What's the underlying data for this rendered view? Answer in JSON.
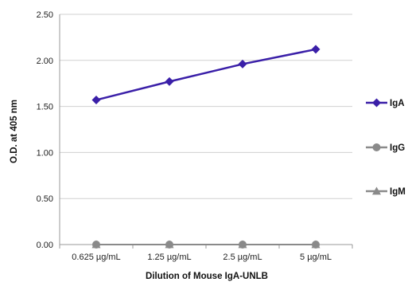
{
  "chart_data": {
    "type": "line",
    "title": "",
    "xlabel": "Dilution of Mouse IgA-UNLB",
    "ylabel": "O.D. at 405 nm",
    "categories": [
      "0.625 µg/mL",
      "1.25 µg/mL",
      "2.5 µg/mL",
      "5 µg/mL"
    ],
    "ylim": [
      0,
      2.5
    ],
    "yticks": [
      "0.00",
      "0.50",
      "1.00",
      "1.50",
      "2.00",
      "2.50"
    ],
    "grid": true,
    "legend_position": "right",
    "series": [
      {
        "name": "IgA",
        "values": [
          1.57,
          1.77,
          1.96,
          2.12
        ],
        "color": "#3a1fa8",
        "marker": "diamond"
      },
      {
        "name": "IgG",
        "values": [
          0.0,
          0.0,
          0.0,
          0.0
        ],
        "color": "#8a8a8a",
        "marker": "circle"
      },
      {
        "name": "IgM",
        "values": [
          0.0,
          0.0,
          0.0,
          0.0
        ],
        "color": "#8a8a8a",
        "marker": "triangle"
      }
    ]
  }
}
